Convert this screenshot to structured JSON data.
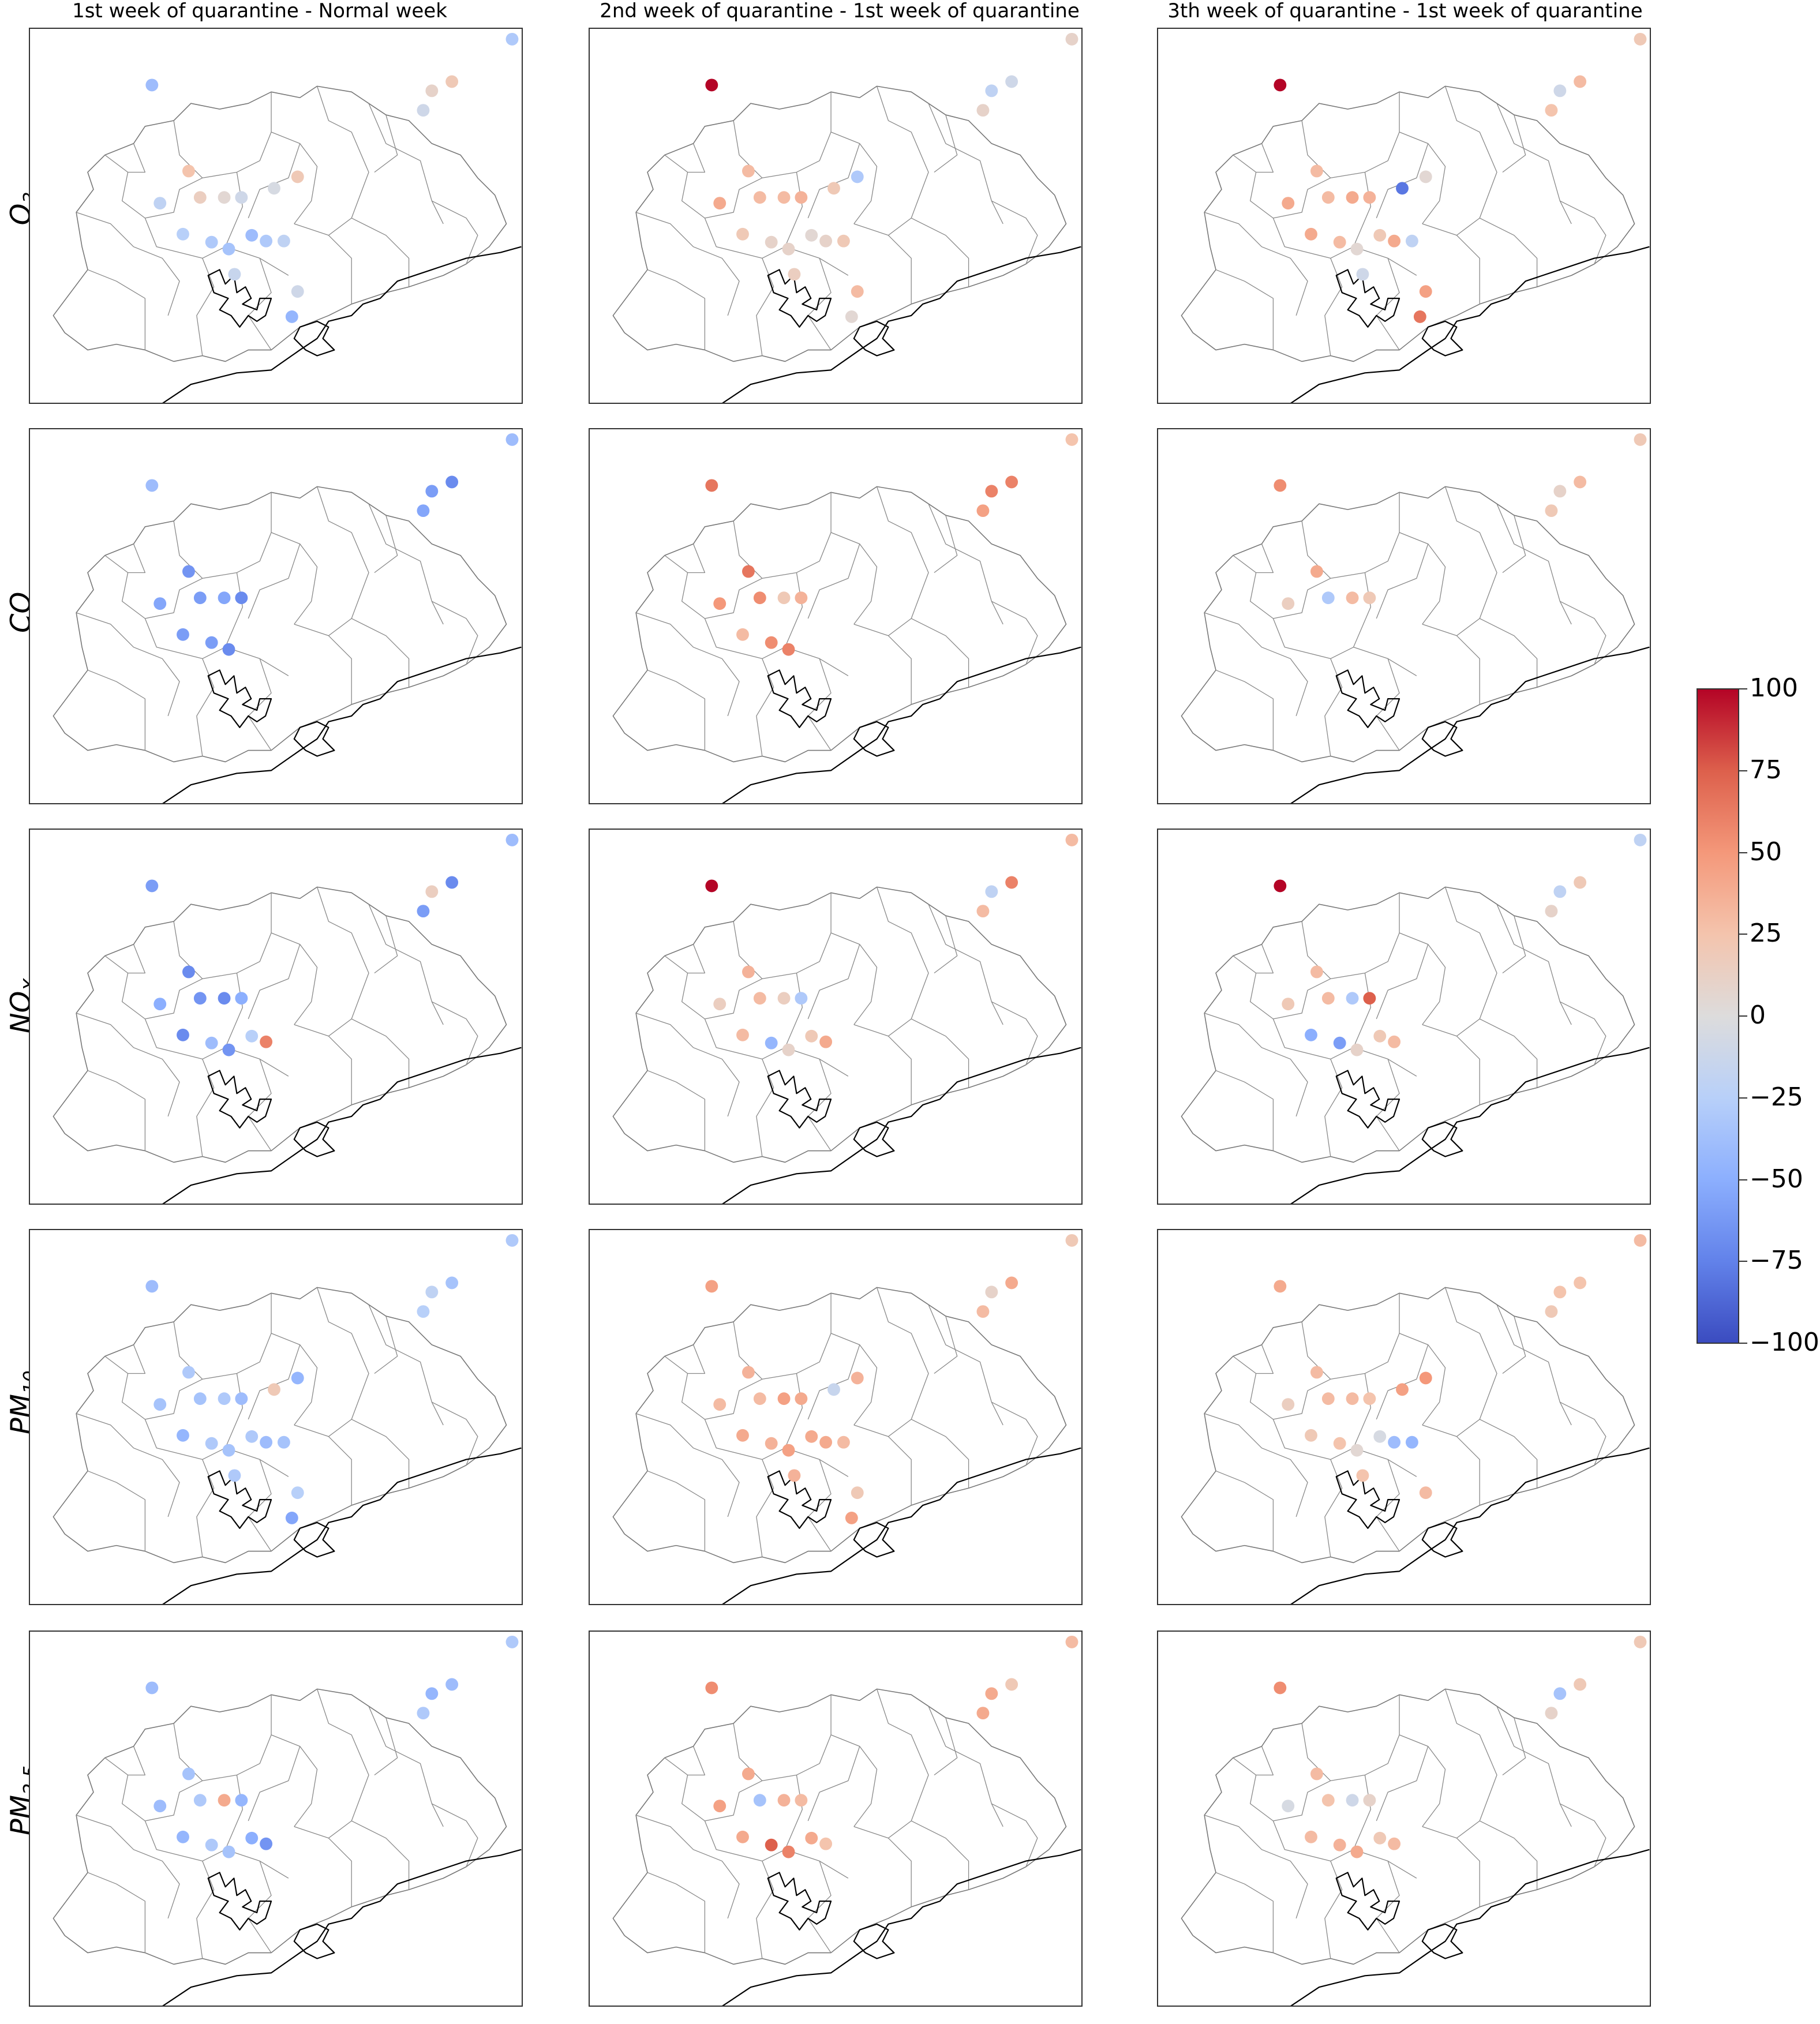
{
  "columns": [
    "1st week of quarantine - Normal week",
    "2nd week of quarantine - 1st week of quarantine",
    "3th week of quarantine - 1st week of quarantine"
  ],
  "rows": [
    {
      "main": "O",
      "sub": "3"
    },
    {
      "main": "CO",
      "sub": ""
    },
    {
      "main": "NO",
      "sub": "X"
    },
    {
      "main": "PM",
      "sub": "10"
    },
    {
      "main": "PM",
      "sub": "2.5"
    }
  ],
  "colorbar": {
    "min": -100,
    "max": 100,
    "ticks": [
      "100",
      "75",
      "50",
      "25",
      "0",
      "−25",
      "−50",
      "−75",
      "−100"
    ],
    "colormap": "coolwarm",
    "colors": [
      "#3b4cc0",
      "#6282ea",
      "#8caffe",
      "#b8d0f9",
      "#dddcdc",
      "#f4c4ad",
      "#f4987a",
      "#dd604c",
      "#b40426"
    ]
  },
  "map_data": {
    "region": "Sao Paulo metropolitan area (municipal boundaries)",
    "panels": [
      [
        [
          -40,
          -30,
          -10,
          10,
          20,
          25,
          15,
          5,
          -10,
          -20,
          -25,
          -30,
          -35,
          -40,
          -30,
          -20,
          -15,
          -10,
          -5,
          20,
          -45
        ],
        [
          -40,
          -40,
          -55,
          -60,
          -70,
          -65,
          -60,
          -55,
          -70,
          -55,
          -60,
          -60,
          -70
        ],
        [
          -60,
          -40,
          -60,
          15,
          -70,
          -70,
          -65,
          -70,
          -50,
          -50,
          -70,
          -40,
          -65,
          -25,
          60
        ],
        [
          -40,
          -30,
          -25,
          -20,
          -35,
          -30,
          -35,
          -30,
          -40,
          -35,
          -45,
          -30,
          -35,
          -30,
          -40,
          -35,
          -30,
          -25,
          20,
          -45,
          -55
        ],
        [
          -40,
          -30,
          -30,
          -45,
          -40,
          -35,
          -30,
          40,
          -45,
          -40,
          -45,
          -30,
          -35,
          -50,
          -65
        ]
      ],
      [
        [
          100,
          10,
          10,
          -20,
          -10,
          30,
          30,
          30,
          35,
          40,
          20,
          10,
          10,
          5,
          10,
          20,
          15,
          30,
          20,
          -30,
          5
        ],
        [
          65,
          25,
          45,
          60,
          60,
          65,
          55,
          20,
          35,
          50,
          30,
          55,
          60
        ],
        [
          100,
          30,
          30,
          -20,
          60,
          35,
          30,
          15,
          -30,
          15,
          30,
          -45,
          10,
          20,
          40
        ],
        [
          45,
          20,
          30,
          10,
          40,
          35,
          30,
          45,
          40,
          30,
          40,
          35,
          45,
          40,
          40,
          30,
          35,
          20,
          -15,
          35,
          45
        ],
        [
          55,
          30,
          40,
          40,
          20,
          40,
          -35,
          35,
          30,
          45,
          40,
          75,
          60,
          40,
          25
        ]
      ],
      [
        [
          100,
          20,
          25,
          -10,
          30,
          30,
          30,
          40,
          35,
          40,
          40,
          30,
          5,
          20,
          40,
          -20,
          -10,
          45,
          -80,
          5,
          65
        ],
        [
          55,
          20,
          20,
          10,
          30,
          40,
          -30,
          30,
          20,
          15
        ],
        [
          100,
          -20,
          10,
          -20,
          20,
          30,
          30,
          -30,
          75,
          20,
          -50,
          -60,
          10,
          20,
          30
        ],
        [
          40,
          30,
          20,
          25,
          25,
          30,
          30,
          30,
          25,
          15,
          20,
          25,
          5,
          -5,
          -40,
          -45,
          25,
          30,
          45,
          50
        ],
        [
          55,
          20,
          10,
          -35,
          20,
          30,
          25,
          -10,
          10,
          -5,
          30,
          35,
          40,
          20,
          30
        ]
      ]
    ]
  }
}
